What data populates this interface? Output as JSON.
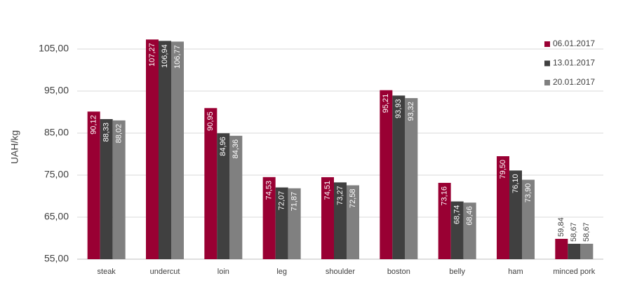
{
  "chart_data": {
    "type": "bar",
    "y_label": "UAH/kg",
    "categories": [
      "steak",
      "undercut",
      "loin",
      "leg",
      "shoulder",
      "boston",
      "belly",
      "ham",
      "minced pork"
    ],
    "series": [
      {
        "name": "06.01.2017",
        "color": "#990033",
        "values": [
          90.12,
          107.27,
          90.95,
          74.53,
          74.51,
          95.21,
          73.16,
          79.5,
          59.84
        ],
        "value_labels": [
          "90,12",
          "107,27",
          "90,95",
          "74,53",
          "74,51",
          "95,21",
          "73,16",
          "79,50",
          "59,84"
        ]
      },
      {
        "name": "13.01.2017",
        "color": "#404040",
        "values": [
          88.33,
          106.94,
          84.96,
          72.07,
          73.27,
          93.93,
          68.74,
          76.1,
          58.67
        ],
        "value_labels": [
          "88,33",
          "106,94",
          "84,96",
          "72,07",
          "73,27",
          "93,93",
          "68,74",
          "76,10",
          "58,67"
        ]
      },
      {
        "name": "20.01.2017",
        "color": "#808080",
        "values": [
          88.02,
          106.77,
          84.36,
          71.87,
          72.58,
          93.32,
          68.46,
          73.9,
          58.67
        ],
        "value_labels": [
          "88,02",
          "106,77",
          "84,36",
          "71,87",
          "72,58",
          "93,32",
          "68,46",
          "73,90",
          "58,67"
        ]
      }
    ],
    "ylim": [
      55,
      110
    ],
    "yticks": [
      {
        "value": 55,
        "label": "55,00"
      },
      {
        "value": 65,
        "label": "65,00"
      },
      {
        "value": 75,
        "label": "75,00"
      },
      {
        "value": 85,
        "label": "85,00"
      },
      {
        "value": 95,
        "label": "95,00"
      },
      {
        "value": 105,
        "label": "105,00"
      }
    ],
    "grid": true,
    "legend": "upper right"
  }
}
